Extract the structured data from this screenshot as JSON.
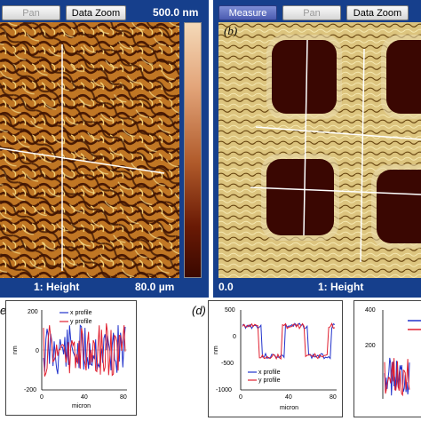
{
  "panel_a": {
    "toolbar": {
      "pan": "Pan",
      "data_zoom": "Data Zoom"
    },
    "range_label": "500.0 nm",
    "footer_channel": "1: Height",
    "footer_scale": "80.0 µm"
  },
  "panel_b": {
    "label": "(b)",
    "toolbar": {
      "measure": "Measure",
      "pan": "Pan",
      "data_zoom": "Data Zoom"
    },
    "footer_left": "0.0",
    "footer_channel": "1: Height"
  },
  "profiles": [
    {
      "label": "e)",
      "legend": [
        "x profile",
        "y profile"
      ],
      "ylabel": "nm",
      "xlabel": "micron",
      "yticks": [
        "200",
        "0",
        "-200"
      ],
      "xticks": [
        "0",
        "40",
        "80"
      ],
      "chart_data": {
        "type": "line",
        "ylim": [
          -200,
          200
        ],
        "xlim": [
          0,
          80
        ],
        "series": [
          {
            "name": "x profile",
            "color": "#2233cc"
          },
          {
            "name": "y profile",
            "color": "#e02030"
          }
        ]
      }
    },
    {
      "label": "(d)",
      "legend": [
        "x profile",
        "y profile"
      ],
      "ylabel": "nm",
      "xlabel": "micron",
      "yticks": [
        "500",
        "0",
        "-500",
        "-1000"
      ],
      "xticks": [
        "0",
        "40",
        "80"
      ],
      "chart_data": {
        "type": "line",
        "ylim": [
          -1000,
          500
        ],
        "xlim": [
          0,
          80
        ],
        "series": [
          {
            "name": "x profile",
            "color": "#2233cc"
          },
          {
            "name": "y profile",
            "color": "#e02030"
          }
        ]
      }
    },
    {
      "label": "",
      "yticks": [
        "400",
        "200"
      ],
      "chart_data": {
        "type": "line",
        "ylim": [
          0,
          400
        ],
        "series": [
          {
            "name": "",
            "color": "#2233cc"
          },
          {
            "name": "",
            "color": "#e02030"
          }
        ]
      }
    }
  ],
  "colors": {
    "panel_bg": "#163f8c",
    "colorbar_top": "#f4d9b8",
    "colorbar_bottom": "#3a0800"
  }
}
